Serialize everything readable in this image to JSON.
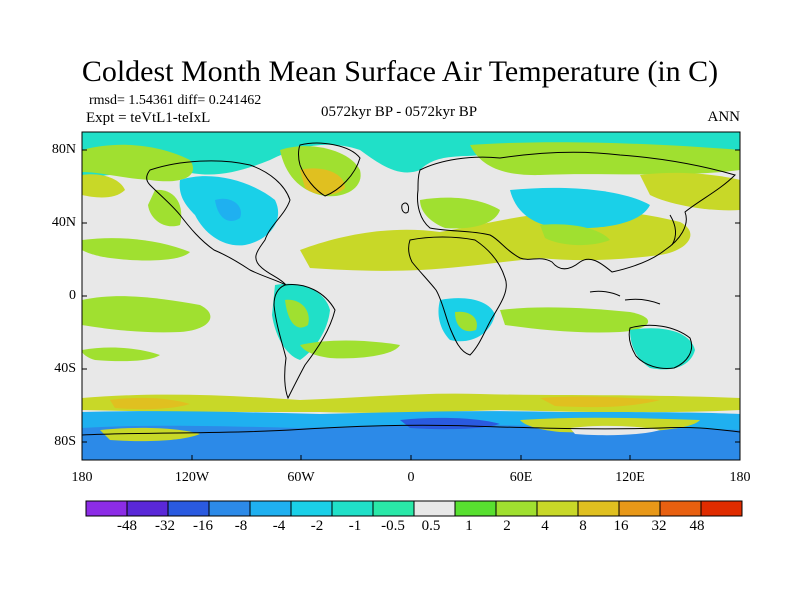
{
  "title": "Coldest Month Mean Surface Air Temperature (in C)",
  "stats": "rmsd= 1.54361  diff= 0.241462",
  "experiment": "Expt = teVtL1-teIxL",
  "period": "0572kyr BP - 0572kyr BP",
  "season": "ANN",
  "lat_labels": [
    "80N",
    "40N",
    "0",
    "40S",
    "80S"
  ],
  "lon_labels": [
    "180",
    "120W",
    "60W",
    "0",
    "60E",
    "120E",
    "180"
  ],
  "colorbar": {
    "labels": [
      "-48",
      "-32",
      "-16",
      "-8",
      "-4",
      "-2",
      "-1",
      "-0.5",
      "0.5",
      "1",
      "2",
      "4",
      "8",
      "16",
      "32",
      "48"
    ],
    "colors": [
      "#8c2ce6",
      "#5a28d8",
      "#2a5ae0",
      "#2c8ae8",
      "#1fb0f0",
      "#1ad0e8",
      "#20e0c8",
      "#2ae8a8",
      "#e8e8e8",
      "#58e030",
      "#a0e030",
      "#c8d828",
      "#e0c020",
      "#e89818",
      "#e86010",
      "#e02c00"
    ]
  },
  "palette": {
    "neutral": "#e8e8e8",
    "ocean_pos_light": "#a0e030",
    "ocean_pos_mid": "#c8d828",
    "warm": "#e0c020",
    "cool_light": "#20e0c8",
    "cool_mid": "#1ad0e8",
    "cool_dark": "#1fb0f0",
    "cold": "#2c8ae8",
    "very_cold": "#2a5ae0",
    "coast": "#000000"
  }
}
